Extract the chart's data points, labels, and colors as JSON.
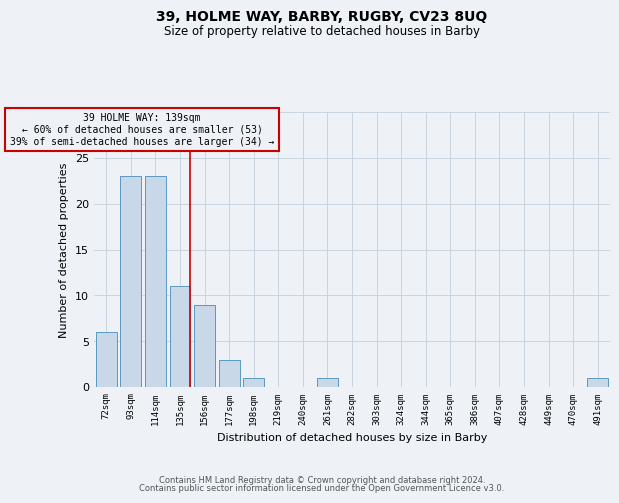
{
  "title": "39, HOLME WAY, BARBY, RUGBY, CV23 8UQ",
  "subtitle": "Size of property relative to detached houses in Barby",
  "xlabel": "Distribution of detached houses by size in Barby",
  "ylabel": "Number of detached properties",
  "bin_labels": [
    "72sqm",
    "93sqm",
    "114sqm",
    "135sqm",
    "156sqm",
    "177sqm",
    "198sqm",
    "219sqm",
    "240sqm",
    "261sqm",
    "282sqm",
    "303sqm",
    "324sqm",
    "344sqm",
    "365sqm",
    "386sqm",
    "407sqm",
    "428sqm",
    "449sqm",
    "470sqm",
    "491sqm"
  ],
  "bin_values": [
    6,
    23,
    23,
    11,
    9,
    3,
    1,
    0,
    0,
    1,
    0,
    0,
    0,
    0,
    0,
    0,
    0,
    0,
    0,
    0,
    1
  ],
  "bar_color": "#c8d8e8",
  "bar_edge_color": "#5a9abf",
  "marker_line_color": "#cc0000",
  "annotation_box_color": "#cc0000",
  "annotation_text_color": "#000000",
  "annotation_line0": "39 HOLME WAY: 139sqm",
  "annotation_line1": "← 60% of detached houses are smaller (53)",
  "annotation_line2": "39% of semi-detached houses are larger (34) →",
  "ylim": [
    0,
    30
  ],
  "yticks": [
    0,
    5,
    10,
    15,
    20,
    25,
    30
  ],
  "grid_color": "#c8d4de",
  "footer_line1": "Contains HM Land Registry data © Crown copyright and database right 2024.",
  "footer_line2": "Contains public sector information licensed under the Open Government Licence v3.0.",
  "background_color": "#eef2f6"
}
